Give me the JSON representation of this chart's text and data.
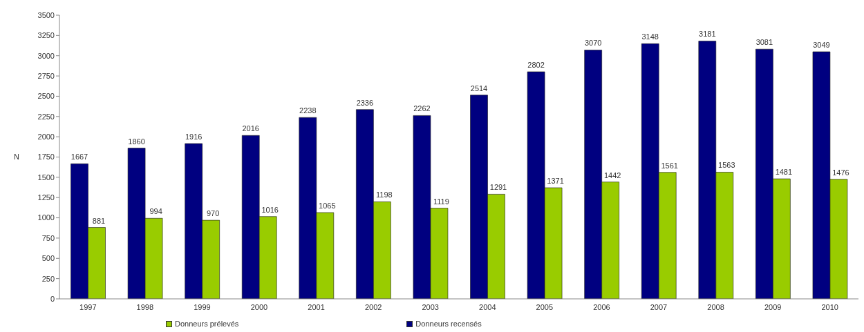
{
  "chart_data": {
    "type": "bar",
    "categories": [
      "1997",
      "1998",
      "1999",
      "2000",
      "2001",
      "2002",
      "2003",
      "2004",
      "2005",
      "2006",
      "2007",
      "2008",
      "2009",
      "2010"
    ],
    "series": [
      {
        "name": "Donneurs recensés",
        "color": "#000080",
        "values": [
          1667,
          1860,
          1916,
          2016,
          2238,
          2336,
          2262,
          2514,
          2802,
          3070,
          3148,
          3181,
          3081,
          3049
        ]
      },
      {
        "name": "Donneurs prélevés",
        "color": "#99cc00",
        "values": [
          881,
          994,
          970,
          1016,
          1065,
          1198,
          1119,
          1291,
          1371,
          1442,
          1561,
          1563,
          1481,
          1476
        ]
      }
    ],
    "ylabel": "N",
    "ylim": [
      0,
      3500
    ],
    "yticks": [
      0,
      250,
      500,
      750,
      1000,
      1250,
      1500,
      1750,
      2000,
      2250,
      2500,
      2750,
      3000,
      3250,
      3500
    ],
    "legend": "bottom",
    "data_labels": true
  }
}
